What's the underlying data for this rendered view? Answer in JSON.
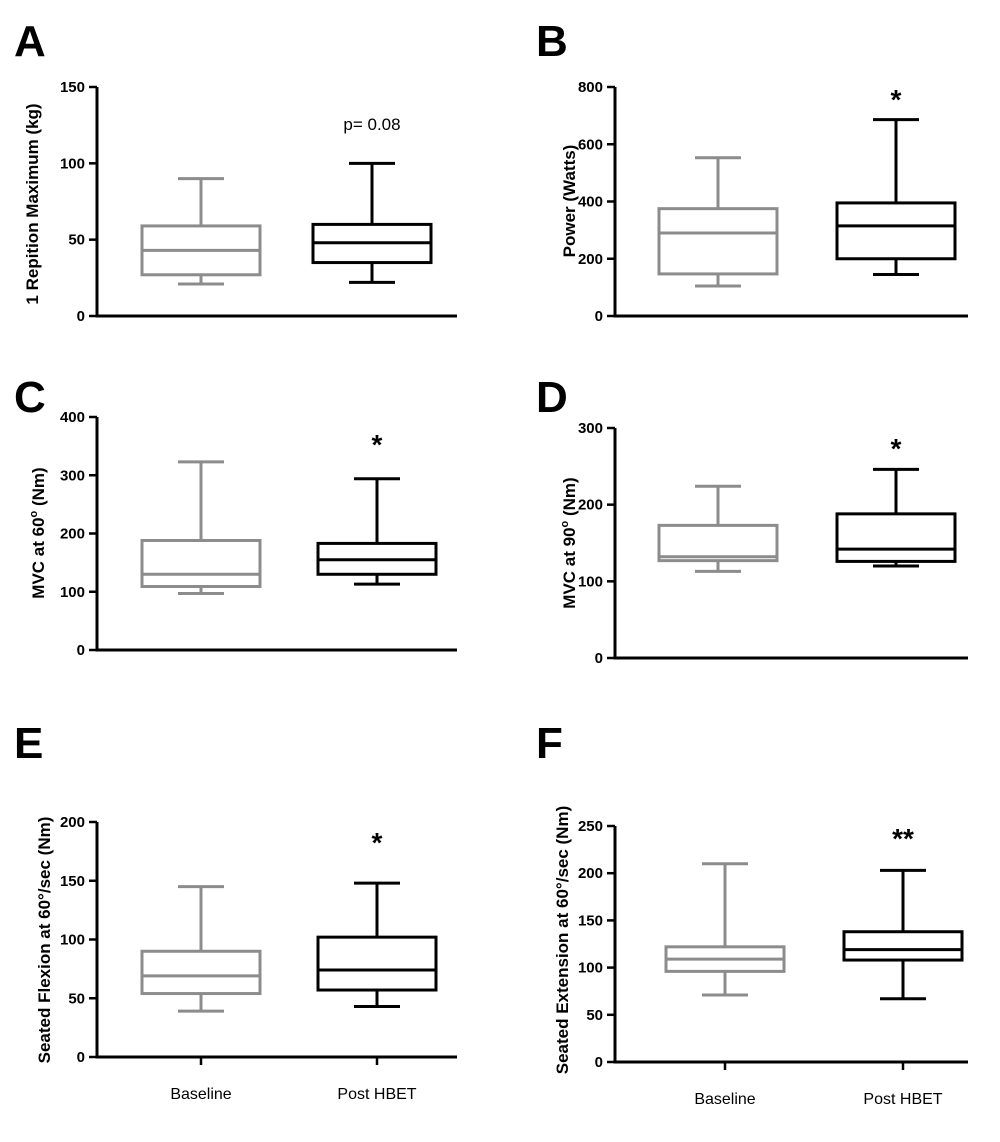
{
  "figure_colors": {
    "baseline": "#8c8c8c",
    "post": "#000000",
    "axis": "#000000"
  },
  "chart_data": [
    {
      "type": "box",
      "panel": "A",
      "ylabel": "1 Repition Maximum (kg)",
      "ylim": [
        0,
        150
      ],
      "yticks": [
        0,
        50,
        100,
        150
      ],
      "categories": [
        "Baseline",
        "Post HBET"
      ],
      "boxes": [
        {
          "category": "Baseline",
          "min": 21,
          "q1": 27,
          "median": 43,
          "q3": 59,
          "max": 90
        },
        {
          "category": "Post HBET",
          "min": 22,
          "q1": 35,
          "median": 48,
          "q3": 60,
          "max": 100
        }
      ],
      "annotation": "p= 0.08",
      "show_xlabels": false
    },
    {
      "type": "box",
      "panel": "B",
      "ylabel": "Power (Watts)",
      "ylim": [
        0,
        800
      ],
      "yticks": [
        0,
        200,
        400,
        600,
        800
      ],
      "categories": [
        "Baseline",
        "Post HBET"
      ],
      "boxes": [
        {
          "category": "Baseline",
          "min": 105,
          "q1": 147,
          "median": 290,
          "q3": 375,
          "max": 553
        },
        {
          "category": "Post HBET",
          "min": 145,
          "q1": 200,
          "median": 315,
          "q3": 395,
          "max": 686
        }
      ],
      "annotation": "*",
      "show_xlabels": false
    },
    {
      "type": "box",
      "panel": "C",
      "ylabel": "MVC at 60° (Nm)",
      "ylabel_parts": [
        "MVC at 60",
        "o",
        " (Nm)"
      ],
      "ylim": [
        0,
        400
      ],
      "yticks": [
        0,
        100,
        200,
        300,
        400
      ],
      "categories": [
        "Baseline",
        "Post HBET"
      ],
      "boxes": [
        {
          "category": "Baseline",
          "min": 97,
          "q1": 109,
          "median": 130,
          "q3": 188,
          "max": 323
        },
        {
          "category": "Post HBET",
          "min": 113,
          "q1": 130,
          "median": 155,
          "q3": 183,
          "max": 294
        }
      ],
      "annotation": "*",
      "show_xlabels": false
    },
    {
      "type": "box",
      "panel": "D",
      "ylabel": "MVC at 90° (Nm)",
      "ylabel_parts": [
        "MVC at 90",
        "o",
        " (Nm)"
      ],
      "ylim": [
        0,
        300
      ],
      "yticks": [
        0,
        100,
        200,
        300
      ],
      "categories": [
        "Baseline",
        "Post HBET"
      ],
      "boxes": [
        {
          "category": "Baseline",
          "min": 113,
          "q1": 127,
          "median": 132,
          "q3": 173,
          "max": 224
        },
        {
          "category": "Post HBET",
          "min": 120,
          "q1": 126,
          "median": 142,
          "q3": 188,
          "max": 246
        }
      ],
      "annotation": "*",
      "show_xlabels": false
    },
    {
      "type": "box",
      "panel": "E",
      "ylabel": "Seated Flexion at 60°/sec (Nm)",
      "ylim": [
        0,
        200
      ],
      "yticks": [
        0,
        50,
        100,
        150,
        200
      ],
      "categories": [
        "Baseline",
        "Post HBET"
      ],
      "boxes": [
        {
          "category": "Baseline",
          "min": 39,
          "q1": 54,
          "median": 69,
          "q3": 90,
          "max": 145
        },
        {
          "category": "Post HBET",
          "min": 43,
          "q1": 57,
          "median": 74,
          "q3": 102,
          "max": 148
        }
      ],
      "annotation": "*",
      "show_xlabels": true
    },
    {
      "type": "box",
      "panel": "F",
      "ylabel": "Seated Extension at 60°/sec (Nm)",
      "ylim": [
        0,
        250
      ],
      "yticks": [
        0,
        50,
        100,
        150,
        200,
        250
      ],
      "categories": [
        "Baseline",
        "Post HBET"
      ],
      "boxes": [
        {
          "category": "Baseline",
          "min": 71,
          "q1": 96,
          "median": 109,
          "q3": 122,
          "max": 210
        },
        {
          "category": "Post HBET",
          "min": 67,
          "q1": 108,
          "median": 119,
          "q3": 138,
          "max": 203
        }
      ],
      "annotation": "**",
      "show_xlabels": true
    }
  ]
}
